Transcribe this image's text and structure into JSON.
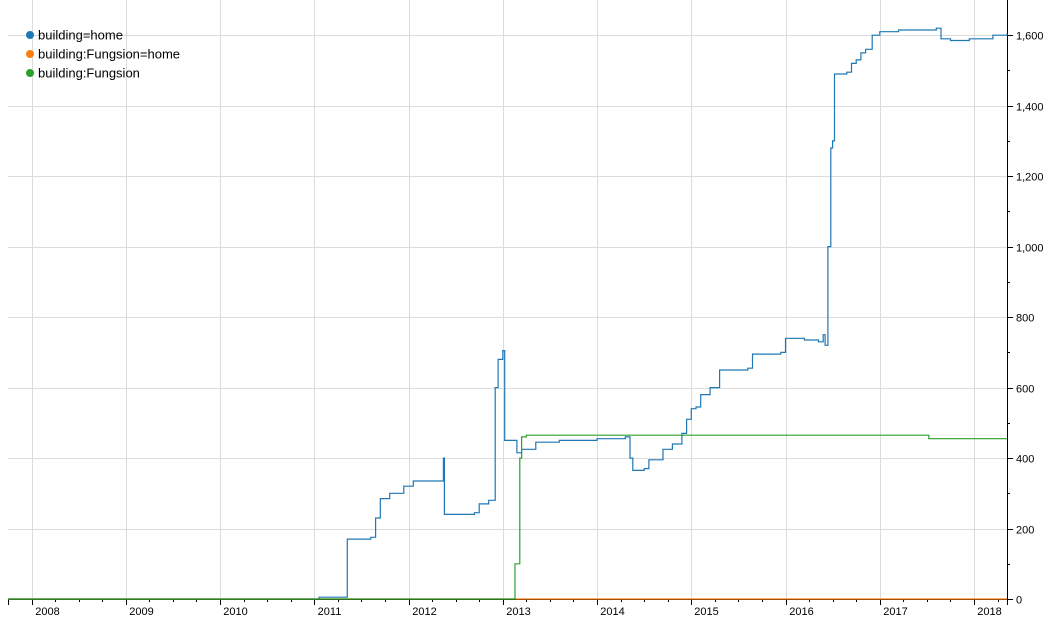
{
  "chart_data": {
    "type": "line",
    "xlim": [
      2007.75,
      2018.35
    ],
    "ylim": [
      0,
      1700
    ],
    "x_ticks": [
      {
        "label": "2008",
        "value": 2008
      },
      {
        "label": "2009",
        "value": 2009
      },
      {
        "label": "2010",
        "value": 2010
      },
      {
        "label": "2011",
        "value": 2011
      },
      {
        "label": "2012",
        "value": 2012
      },
      {
        "label": "2013",
        "value": 2013
      },
      {
        "label": "2014",
        "value": 2014
      },
      {
        "label": "2015",
        "value": 2015
      },
      {
        "label": "2016",
        "value": 2016
      },
      {
        "label": "2017",
        "value": 2017
      },
      {
        "label": "2018",
        "value": 2018
      }
    ],
    "y_ticks": [
      {
        "label": "0",
        "value": 0
      },
      {
        "label": "200",
        "value": 200
      },
      {
        "label": "400",
        "value": 400
      },
      {
        "label": "600",
        "value": 600
      },
      {
        "label": "800",
        "value": 800
      },
      {
        "label": "1,000",
        "value": 1000
      },
      {
        "label": "1,200",
        "value": 1200
      },
      {
        "label": "1,400",
        "value": 1400
      },
      {
        "label": "1,600",
        "value": 1600
      }
    ],
    "grid": true,
    "legend_position": "top-left",
    "series": [
      {
        "name": "building=home",
        "color": "#1f77b4",
        "points": [
          [
            2007.75,
            0
          ],
          [
            2011.0,
            0
          ],
          [
            2011.05,
            5
          ],
          [
            2011.3,
            5
          ],
          [
            2011.35,
            170
          ],
          [
            2011.6,
            175
          ],
          [
            2011.65,
            230
          ],
          [
            2011.7,
            285
          ],
          [
            2011.8,
            300
          ],
          [
            2011.95,
            320
          ],
          [
            2012.05,
            335
          ],
          [
            2012.35,
            335
          ],
          [
            2012.37,
            400
          ],
          [
            2012.38,
            240
          ],
          [
            2012.6,
            240
          ],
          [
            2012.7,
            245
          ],
          [
            2012.75,
            270
          ],
          [
            2012.85,
            280
          ],
          [
            2012.9,
            280
          ],
          [
            2012.92,
            600
          ],
          [
            2012.95,
            680
          ],
          [
            2013.0,
            705
          ],
          [
            2013.02,
            450
          ],
          [
            2013.1,
            450
          ],
          [
            2013.15,
            415
          ],
          [
            2013.2,
            425
          ],
          [
            2013.35,
            445
          ],
          [
            2013.6,
            450
          ],
          [
            2014.0,
            455
          ],
          [
            2014.3,
            460
          ],
          [
            2014.35,
            400
          ],
          [
            2014.38,
            365
          ],
          [
            2014.5,
            370
          ],
          [
            2014.55,
            395
          ],
          [
            2014.7,
            425
          ],
          [
            2014.8,
            440
          ],
          [
            2014.9,
            470
          ],
          [
            2014.95,
            510
          ],
          [
            2015.0,
            540
          ],
          [
            2015.05,
            545
          ],
          [
            2015.1,
            580
          ],
          [
            2015.2,
            600
          ],
          [
            2015.3,
            650
          ],
          [
            2015.6,
            655
          ],
          [
            2015.65,
            695
          ],
          [
            2015.95,
            700
          ],
          [
            2016.0,
            740
          ],
          [
            2016.2,
            735
          ],
          [
            2016.35,
            730
          ],
          [
            2016.4,
            750
          ],
          [
            2016.42,
            720
          ],
          [
            2016.45,
            1000
          ],
          [
            2016.48,
            1280
          ],
          [
            2016.5,
            1300
          ],
          [
            2016.52,
            1490
          ],
          [
            2016.65,
            1495
          ],
          [
            2016.7,
            1520
          ],
          [
            2016.75,
            1530
          ],
          [
            2016.8,
            1550
          ],
          [
            2016.85,
            1560
          ],
          [
            2016.92,
            1600
          ],
          [
            2017.0,
            1610
          ],
          [
            2017.2,
            1615
          ],
          [
            2017.6,
            1620
          ],
          [
            2017.65,
            1590
          ],
          [
            2017.75,
            1585
          ],
          [
            2017.95,
            1590
          ],
          [
            2018.2,
            1600
          ],
          [
            2018.35,
            1605
          ]
        ]
      },
      {
        "name": "building:Fungsion=home",
        "color": "#ff7f0e",
        "points": [
          [
            2007.75,
            0
          ],
          [
            2018.35,
            0
          ]
        ]
      },
      {
        "name": "building:Fungsion",
        "color": "#2ca02c",
        "points": [
          [
            2007.75,
            0
          ],
          [
            2013.12,
            0
          ],
          [
            2013.13,
            100
          ],
          [
            2013.18,
            400
          ],
          [
            2013.2,
            460
          ],
          [
            2013.25,
            465
          ],
          [
            2017.5,
            465
          ],
          [
            2017.52,
            455
          ],
          [
            2018.35,
            455
          ]
        ]
      }
    ]
  }
}
